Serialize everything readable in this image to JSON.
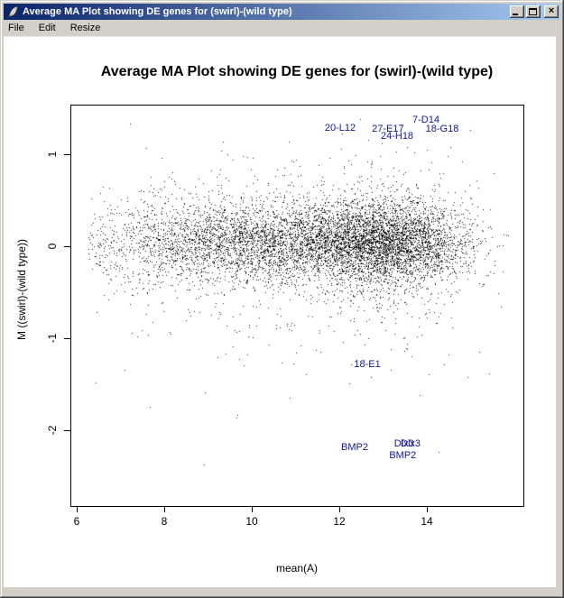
{
  "window": {
    "title": "Average MA Plot showing DE genes for (swirl)-(wild type)",
    "icon": "r-graphics-feather-icon",
    "close_glyph": "×"
  },
  "menu": {
    "items": [
      {
        "label": "File"
      },
      {
        "label": "Edit"
      },
      {
        "label": "Resize"
      }
    ]
  },
  "colors": {
    "titlebar_gradient_start": "#0a246a",
    "titlebar_gradient_end": "#a6caf0",
    "window_chrome": "#d4d0c8",
    "canvas_background": "#ffffff",
    "titlebar_text": "#ffffff"
  },
  "chart_data": {
    "type": "scatter",
    "title": "Average MA Plot showing DE genes for (swirl)-(wild type)",
    "xlabel": "mean(A)",
    "ylabel": "M ((swirl)-(wild type))",
    "xlim": [
      5.85,
      16.2
    ],
    "ylim": [
      -2.82,
      1.54
    ],
    "xticks": [
      6,
      8,
      10,
      12,
      14
    ],
    "xtick_labels": [
      "6",
      "8",
      "10",
      "12",
      "14"
    ],
    "yticks": [
      1,
      0,
      -1,
      -2
    ],
    "ytick_labels": [
      "1",
      "0",
      "-1",
      "-2"
    ],
    "grid": false,
    "legend": false,
    "n_points": 8448,
    "point_color": "#000000",
    "label_color": "#15158d",
    "labeled_genes": [
      {
        "name": "20-L12",
        "A": 12.02,
        "M": 1.28
      },
      {
        "name": "27-E17",
        "A": 13.11,
        "M": 1.27
      },
      {
        "name": "7-D14",
        "A": 13.98,
        "M": 1.37
      },
      {
        "name": "24-H18",
        "A": 13.32,
        "M": 1.2
      },
      {
        "name": "18-G18",
        "A": 14.35,
        "M": 1.27
      },
      {
        "name": "18-E1",
        "A": 12.64,
        "M": -1.28
      },
      {
        "name": "BMP2",
        "A": 12.35,
        "M": -2.19
      },
      {
        "name": "Dlx3",
        "A": 13.48,
        "M": -2.15
      },
      {
        "name": "Dlx3",
        "A": 13.63,
        "M": -2.15
      },
      {
        "name": "BMP2",
        "A": 13.45,
        "M": -2.27
      }
    ],
    "point_cloud": {
      "seed": 12345,
      "x_mixture": [
        {
          "w": 0.45,
          "mean": 13.1,
          "sd": 0.95
        },
        {
          "w": 0.3,
          "mean": 11.2,
          "sd": 1.5
        },
        {
          "w": 0.25,
          "mean": 9.0,
          "sd": 1.5
        }
      ],
      "x_range": [
        6.25,
        15.85
      ],
      "y_mixture": [
        {
          "w": 0.825,
          "mean": 0.05,
          "sd": 0.22
        },
        {
          "w": 0.15,
          "mean": 0.0,
          "sd": 0.45
        },
        {
          "w": 0.025,
          "mean": -0.3,
          "sd": 0.7
        }
      ],
      "y_range": [
        -2.55,
        1.42
      ]
    }
  }
}
